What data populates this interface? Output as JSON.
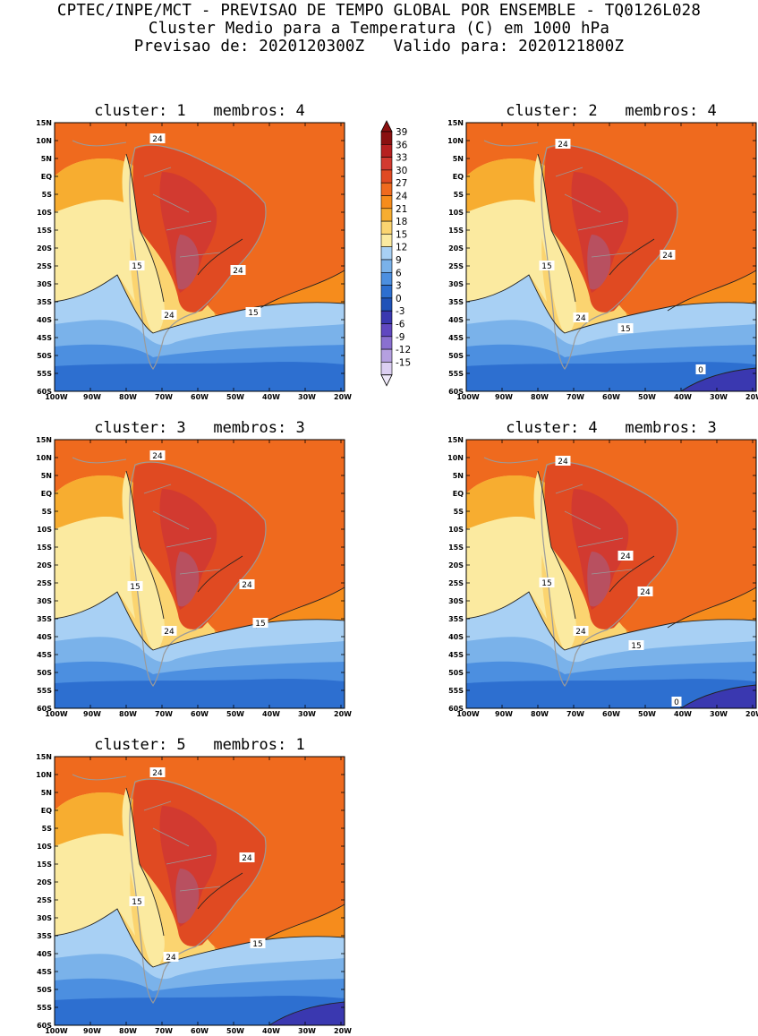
{
  "header": {
    "line1": "CPTEC/INPE/MCT - PREVISAO DE TEMPO GLOBAL POR ENSEMBLE - TQ0126L028",
    "line2": "Cluster Medio para a Temperatura (C) em 1000 hPa",
    "line3": "Previsao de: 2020120300Z   Valido para: 2020121800Z"
  },
  "lat_labels": [
    "15N",
    "10N",
    "5N",
    "EQ",
    "5S",
    "10S",
    "15S",
    "20S",
    "25S",
    "30S",
    "35S",
    "40S",
    "45S",
    "50S",
    "55S",
    "60S"
  ],
  "lon_labels": [
    "100W",
    "90W",
    "80W",
    "70W",
    "60W",
    "50W",
    "40W",
    "30W",
    "20W"
  ],
  "colorbar": {
    "labels": [
      "39",
      "36",
      "33",
      "30",
      "27",
      "24",
      "21",
      "18",
      "15",
      "12",
      "9",
      "6",
      "3",
      "0",
      "-3",
      "-6",
      "-9",
      "-12",
      "-15"
    ],
    "colors": [
      "#8a1010",
      "#b62020",
      "#d23a30",
      "#e04a22",
      "#ef6a1e",
      "#f68c1c",
      "#f7ad30",
      "#fbd470",
      "#fbeaa0",
      "#a8d0f4",
      "#7ab2ea",
      "#4c8fe0",
      "#2d6fd0",
      "#1f52b8",
      "#3a38b0",
      "#6048c0",
      "#8a70d0",
      "#b5a0e0",
      "#dccff2"
    ]
  },
  "panels": [
    {
      "title": "cluster: 1   membros: 4",
      "labels": [
        {
          "t": "24"
        },
        {
          "t": "24"
        },
        {
          "t": "15"
        },
        {
          "t": "24"
        },
        {
          "t": "15"
        }
      ]
    },
    {
      "title": "cluster: 2   membros: 4",
      "labels": [
        {
          "t": "24"
        },
        {
          "t": "24"
        },
        {
          "t": "15"
        },
        {
          "t": "24"
        },
        {
          "t": "15"
        },
        {
          "t": "0"
        }
      ]
    },
    {
      "title": "cluster: 3   membros: 3",
      "labels": [
        {
          "t": "24"
        },
        {
          "t": "24"
        },
        {
          "t": "15"
        },
        {
          "t": "24"
        },
        {
          "t": "15"
        }
      ]
    },
    {
      "title": "cluster: 4   membros: 3",
      "labels": [
        {
          "t": "24"
        },
        {
          "t": "24"
        },
        {
          "t": "24"
        },
        {
          "t": "15"
        },
        {
          "t": "24"
        },
        {
          "t": "15"
        },
        {
          "t": "0"
        }
      ]
    },
    {
      "title": "cluster: 5   membros: 1",
      "labels": [
        {
          "t": "24"
        },
        {
          "t": "24"
        },
        {
          "t": "15"
        },
        {
          "t": "24"
        },
        {
          "t": "15"
        }
      ]
    }
  ]
}
